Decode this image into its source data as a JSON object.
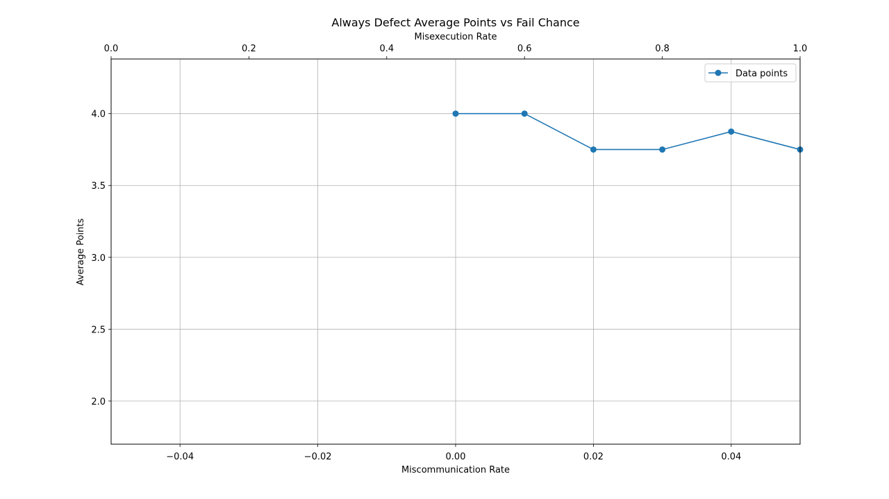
{
  "chart_data": {
    "type": "line",
    "title": "Always Defect Average Points vs Fail Chance",
    "xlabel": "Miscommunication Rate",
    "ylabel": "Average Points",
    "top_xlabel": "Misexecution Rate",
    "xlim": [
      -0.05,
      0.05
    ],
    "ylim": [
      1.7,
      4.38
    ],
    "top_xlim": [
      0.0,
      1.0
    ],
    "grid": true,
    "legend_position": "top-right",
    "x_ticks": [
      -0.04,
      -0.02,
      0.0,
      0.02,
      0.04
    ],
    "x_tick_labels": [
      "−0.04",
      "−0.02",
      "0.00",
      "0.02",
      "0.04"
    ],
    "y_ticks": [
      2.0,
      2.5,
      3.0,
      3.5,
      4.0
    ],
    "y_tick_labels": [
      "2.0",
      "2.5",
      "3.0",
      "3.5",
      "4.0"
    ],
    "top_x_ticks": [
      0.0,
      0.2,
      0.4,
      0.6,
      0.8,
      1.0
    ],
    "top_x_tick_labels": [
      "0.0",
      "0.2",
      "0.4",
      "0.6",
      "0.8",
      "1.0"
    ],
    "series": [
      {
        "name": "Data points",
        "color": "#1f77b4",
        "x": [
          0.0,
          0.01,
          0.02,
          0.03,
          0.04,
          0.05
        ],
        "y": [
          4.0,
          4.0,
          3.75,
          3.75,
          3.875,
          3.75
        ]
      }
    ]
  }
}
